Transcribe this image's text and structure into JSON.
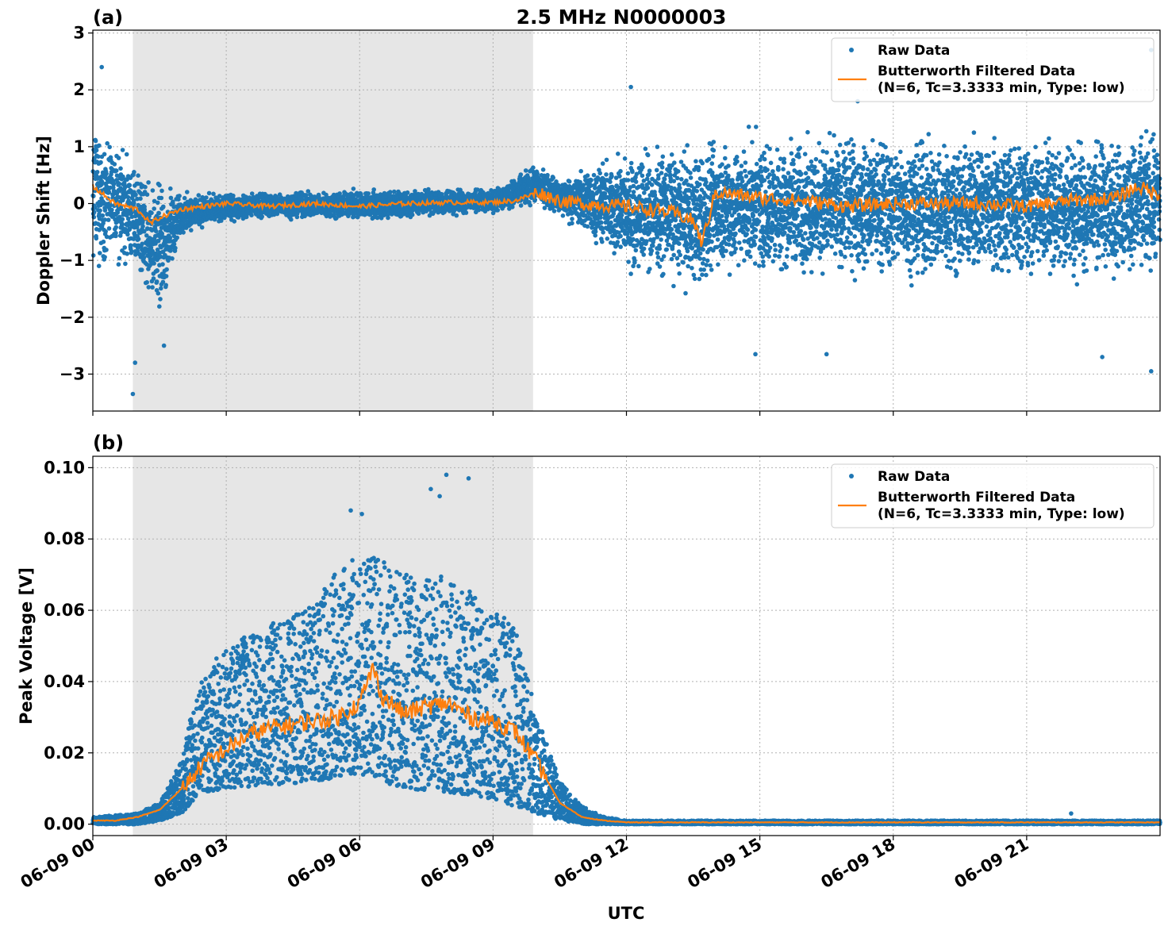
{
  "title": "2.5 MHz N0000003",
  "xlabel": "UTC",
  "colors": {
    "raw": "#1f77b4",
    "filtered": "#ff7f0e",
    "shade": "#e6e6e6",
    "grid": "#b0b0b0"
  },
  "x_tick_labels": [
    "06-09 00",
    "06-09 03",
    "06-09 06",
    "06-09 09",
    "06-09 12",
    "06-09 15",
    "06-09 18",
    "06-09 21"
  ],
  "legend": {
    "raw_label": "Raw Data",
    "filtered_label_line1": "Butterworth Filtered Data",
    "filtered_label_line2": "(N=6, Tc=3.3333 min, Type: low)"
  },
  "chart_data": [
    {
      "type": "scatter",
      "panel": "(a)",
      "ylabel": "Doppler Shift [Hz]",
      "xlim": [
        "06-09 00:00",
        "06-10 00:00"
      ],
      "ylim": [
        -3.65,
        3.05
      ],
      "yticks": [
        3,
        2,
        1,
        0,
        -1,
        -2,
        -3
      ],
      "ytick_labels": [
        "3",
        "2",
        "1",
        "0",
        "−1",
        "−2",
        "−3"
      ],
      "shaded_span_utc_hours": [
        0.9,
        9.9
      ],
      "grid": true,
      "legend_position": "top-right",
      "series": [
        {
          "name": "Raw Data",
          "style": "points",
          "x_hours": [
            0,
            0.5,
            1,
            1.5,
            2,
            3,
            4,
            5,
            6,
            7,
            8,
            9,
            10,
            10.5,
            11,
            12,
            13,
            13.7,
            14,
            15,
            16,
            17,
            18,
            19,
            20,
            21,
            22,
            23,
            24
          ],
          "band_low": [
            -1.3,
            -1.2,
            -1.4,
            -2.2,
            -0.6,
            -0.35,
            -0.3,
            -0.3,
            -0.35,
            -0.3,
            -0.25,
            -0.2,
            -0.1,
            -0.3,
            -0.6,
            -1.4,
            -1.5,
            -1.9,
            -1.5,
            -1.5,
            -1.5,
            -1.5,
            -1.5,
            -1.6,
            -1.5,
            -1.5,
            -1.6,
            -1.5,
            -1.5
          ],
          "band_high": [
            1.7,
            1.3,
            0.8,
            0.6,
            0.25,
            0.2,
            0.25,
            0.25,
            0.3,
            0.3,
            0.3,
            0.3,
            0.75,
            0.5,
            0.7,
            1.1,
            1.2,
            1.2,
            1.4,
            1.4,
            1.4,
            1.4,
            1.4,
            1.4,
            1.4,
            1.4,
            1.4,
            1.4,
            1.5
          ],
          "outliers": [
            [
              0.2,
              2.4
            ],
            [
              0.9,
              -3.35
            ],
            [
              1.6,
              -2.5
            ],
            [
              0.95,
              -2.8
            ],
            [
              12.1,
              2.05
            ],
            [
              14.9,
              -2.65
            ],
            [
              22.7,
              -2.7
            ],
            [
              23.8,
              -2.95
            ],
            [
              23.8,
              2.7
            ],
            [
              16.5,
              -2.65
            ],
            [
              17.2,
              1.8
            ]
          ]
        },
        {
          "name": "Butterworth Filtered Data",
          "style": "line",
          "x_hours": [
            0,
            0.5,
            1,
            1.3,
            1.5,
            2,
            3,
            4,
            5,
            6,
            7,
            8,
            9,
            9.5,
            10,
            10.5,
            11,
            12,
            13,
            13.5,
            13.7,
            14,
            15,
            16,
            17,
            18,
            19,
            20,
            21,
            22,
            23,
            23.5,
            24
          ],
          "values": [
            0.3,
            0.0,
            -0.1,
            -0.35,
            -0.25,
            -0.1,
            0.0,
            -0.05,
            0.0,
            -0.05,
            0.0,
            0.02,
            0.02,
            0.05,
            0.2,
            0.05,
            0.0,
            -0.05,
            -0.15,
            -0.3,
            -0.7,
            0.2,
            0.1,
            0.05,
            -0.05,
            0.0,
            0.0,
            0.0,
            -0.05,
            0.05,
            0.1,
            0.3,
            0.15
          ]
        }
      ]
    },
    {
      "type": "scatter",
      "panel": "(b)",
      "ylabel": "Peak Voltage [V]",
      "xlabel": "UTC",
      "xlim": [
        "06-09 00:00",
        "06-10 00:00"
      ],
      "ylim": [
        -0.0032,
        0.1032
      ],
      "yticks": [
        0.0,
        0.02,
        0.04,
        0.06,
        0.08,
        0.1
      ],
      "ytick_labels": [
        "0.00",
        "0.02",
        "0.04",
        "0.06",
        "0.08",
        "0.10"
      ],
      "shaded_span_utc_hours": [
        0.9,
        9.9
      ],
      "grid": true,
      "legend_position": "top-right",
      "series": [
        {
          "name": "Raw Data",
          "style": "points",
          "x_hours": [
            0,
            1,
            1.5,
            2,
            2.2,
            2.5,
            3,
            4,
            5,
            5.5,
            6,
            6.5,
            7,
            8,
            9,
            9.5,
            10,
            10.5,
            11,
            11.5,
            12,
            24
          ],
          "band_low": [
            0.0,
            0.0,
            0.001,
            0.003,
            0.006,
            0.009,
            0.01,
            0.011,
            0.012,
            0.013,
            0.014,
            0.012,
            0.01,
            0.009,
            0.007,
            0.005,
            0.003,
            0.001,
            0.0,
            0.0,
            0.0,
            0.0
          ],
          "band_high": [
            0.002,
            0.003,
            0.006,
            0.018,
            0.03,
            0.042,
            0.05,
            0.056,
            0.062,
            0.072,
            0.076,
            0.074,
            0.07,
            0.07,
            0.062,
            0.055,
            0.03,
            0.012,
            0.005,
            0.002,
            0.001,
            0.001
          ],
          "outliers": [
            [
              5.8,
              0.088
            ],
            [
              6.05,
              0.087
            ],
            [
              7.6,
              0.094
            ],
            [
              7.95,
              0.098
            ],
            [
              8.45,
              0.097
            ],
            [
              7.8,
              0.092
            ],
            [
              22.0,
              0.003
            ]
          ]
        },
        {
          "name": "Butterworth Filtered Data",
          "style": "line",
          "x_hours": [
            0,
            0.5,
            1,
            1.5,
            2,
            2.5,
            3,
            3.5,
            4,
            4.5,
            5,
            5.5,
            6,
            6.3,
            6.5,
            7,
            7.5,
            8,
            8.5,
            9,
            9.5,
            10,
            10.5,
            11,
            11.5,
            12,
            24
          ],
          "values": [
            0.001,
            0.001,
            0.002,
            0.004,
            0.01,
            0.017,
            0.021,
            0.025,
            0.027,
            0.028,
            0.029,
            0.03,
            0.034,
            0.044,
            0.036,
            0.031,
            0.033,
            0.034,
            0.03,
            0.029,
            0.026,
            0.017,
            0.006,
            0.002,
            0.001,
            0.0005,
            0.0005
          ]
        }
      ]
    }
  ]
}
